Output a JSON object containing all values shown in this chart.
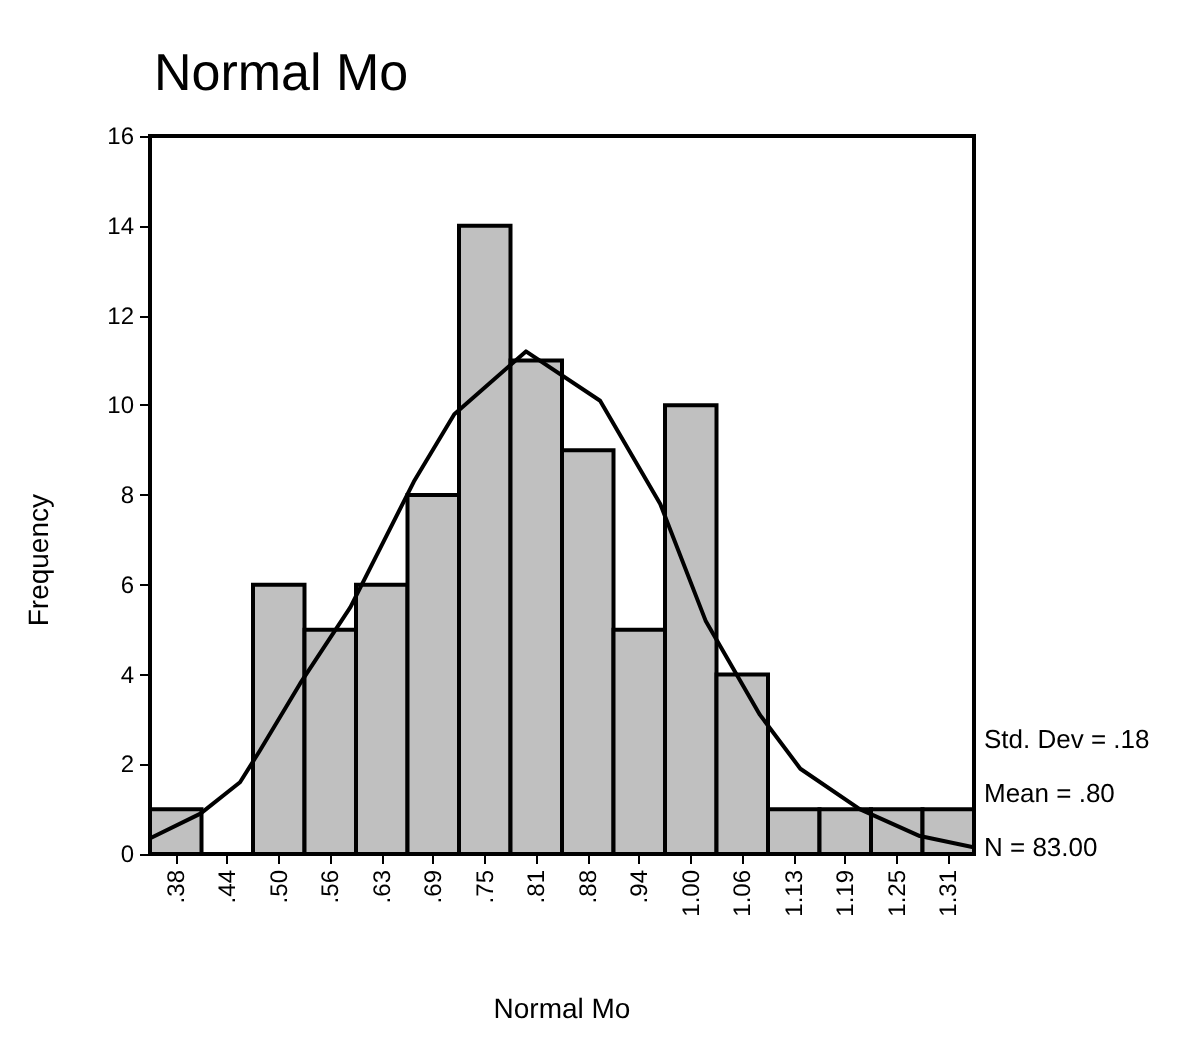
{
  "chart_data": {
    "type": "histogram",
    "title": "Normal Mo",
    "xlabel": "Normal Mo",
    "ylabel": "Frequency",
    "bins": [
      0.34375,
      0.40625,
      0.46875,
      0.53125,
      0.59375,
      0.65625,
      0.71875,
      0.78125,
      0.84375,
      0.90625,
      0.96875,
      1.03125,
      1.09375,
      1.15625,
      1.21875,
      1.28125,
      1.34375
    ],
    "values": [
      1,
      0,
      6,
      5,
      6,
      8,
      14,
      11,
      9,
      5,
      10,
      4,
      1,
      1,
      1,
      1
    ],
    "color": "#c0c0c0",
    "series": [
      {
        "type": "line",
        "color": "#000000",
        "x": [
          0.344,
          0.405,
          0.453,
          0.477,
          0.526,
          0.587,
          0.664,
          0.713,
          0.8,
          0.89,
          0.963,
          1.018,
          1.084,
          1.133,
          1.205,
          1.278,
          1.343
        ],
        "values": [
          0.35,
          0.9,
          1.6,
          2.3,
          3.8,
          5.5,
          8.3,
          9.8,
          11.2,
          10.1,
          7.8,
          5.2,
          3.1,
          1.9,
          1.0,
          0.4,
          0.15
        ]
      }
    ],
    "xlim": [
      0.34375,
      1.34375
    ],
    "xticks": [
      {
        "value": 0.375,
        "label": ".38"
      },
      {
        "value": 0.4375,
        "label": ".44"
      },
      {
        "value": 0.5,
        "label": ".50"
      },
      {
        "value": 0.5625,
        "label": ".56"
      },
      {
        "value": 0.625,
        "label": ".63"
      },
      {
        "value": 0.6875,
        "label": ".69"
      },
      {
        "value": 0.75,
        "label": ".75"
      },
      {
        "value": 0.8125,
        "label": ".81"
      },
      {
        "value": 0.875,
        "label": ".88"
      },
      {
        "value": 0.9375,
        "label": ".94"
      },
      {
        "value": 1.0,
        "label": "1.00"
      },
      {
        "value": 1.0625,
        "label": "1.06"
      },
      {
        "value": 1.125,
        "label": "1.13"
      },
      {
        "value": 1.1875,
        "label": "1.19"
      },
      {
        "value": 1.25,
        "label": "1.25"
      },
      {
        "value": 1.3125,
        "label": "1.31"
      }
    ],
    "ylim": [
      0,
      16
    ],
    "yticks": [
      0,
      2,
      4,
      6,
      8,
      10,
      12,
      14,
      16
    ],
    "grid": false,
    "legend": false,
    "marker": "none",
    "line_style": "solid",
    "annotations": [
      "Std. Dev = .18",
      "Mean = .80",
      "N = 83.00"
    ]
  }
}
